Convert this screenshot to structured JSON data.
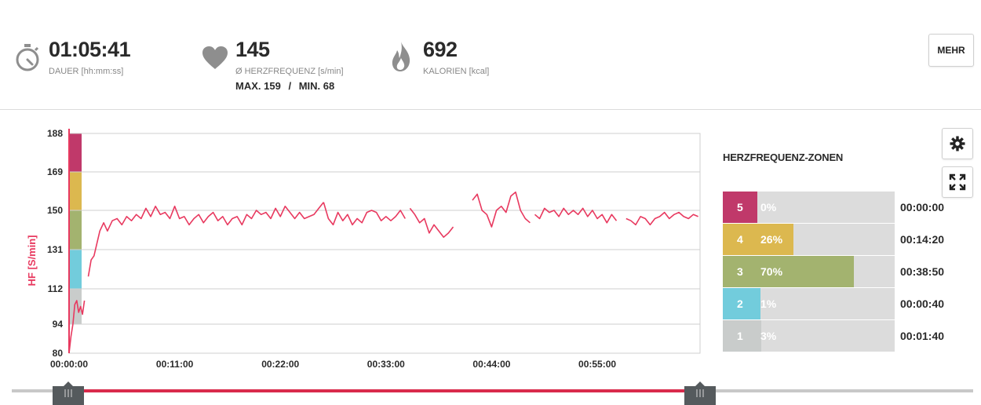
{
  "stats": {
    "duration": {
      "value": "01:05:41",
      "label": "DAUER [hh:mm:ss]"
    },
    "heart_rate": {
      "value": "145",
      "label": "Ø HERZFREQUENZ [s/min]",
      "max_label": "MAX. 159",
      "separator": "/",
      "min_label": "MIN. 68"
    },
    "calories": {
      "value": "692",
      "label": "KALORIEN [kcal]"
    }
  },
  "buttons": {
    "mehr_label": "MEHR"
  },
  "icons": {
    "duration": "stopwatch-icon",
    "heart_rate": "heart-icon",
    "calories": "flame-icon",
    "settings": "gear-icon",
    "expand": "fullscreen-icon"
  },
  "zones": {
    "title": "HERZFREQUENZ-ZONEN",
    "items": [
      {
        "zone": "5",
        "percent": "0%",
        "time": "00:00:00",
        "fraction": 0.0,
        "color": "#c0396a"
      },
      {
        "zone": "4",
        "percent": "26%",
        "time": "00:14:20",
        "fraction": 0.26,
        "color": "#dcb84f"
      },
      {
        "zone": "3",
        "percent": "70%",
        "time": "00:38:50",
        "fraction": 0.7,
        "color": "#a3b36f"
      },
      {
        "zone": "2",
        "percent": "1%",
        "time": "00:00:40",
        "fraction": 0.01,
        "color": "#72ccdc"
      },
      {
        "zone": "1",
        "percent": "3%",
        "time": "00:01:40",
        "fraction": 0.03,
        "color": "#c9cccb"
      }
    ]
  },
  "chart_data": {
    "type": "line",
    "ylabel": "HF [S/min]",
    "y_ticks": [
      "188",
      "169",
      "150",
      "131",
      "112",
      "94",
      "80"
    ],
    "x_ticks": [
      "00:00:00",
      "00:11:00",
      "00:22:00",
      "00:33:00",
      "00:44:00",
      "00:55:00"
    ],
    "ylim": [
      80,
      188
    ],
    "xlim_minutes": [
      0,
      65.7
    ],
    "line_color": "#e8395f",
    "zone_bands": [
      {
        "zone": "5",
        "from": 169,
        "to": 188,
        "color": "#c0396a"
      },
      {
        "zone": "4",
        "from": 150,
        "to": 169,
        "color": "#dcb84f"
      },
      {
        "zone": "3",
        "from": 131,
        "to": 150,
        "color": "#a3b36f"
      },
      {
        "zone": "2",
        "from": 112,
        "to": 131,
        "color": "#72ccdc"
      },
      {
        "zone": "1",
        "from": 94,
        "to": 112,
        "color": "#c9cccb"
      }
    ],
    "series": [
      {
        "x": [
          0,
          0.2,
          0.4,
          0.6,
          0.8,
          1.0,
          1.2,
          1.4,
          1.6
        ],
        "y": [
          80,
          88,
          94,
          104,
          106,
          100,
          103,
          99,
          106
        ]
      },
      {
        "x": [
          2.0,
          2.3,
          2.6,
          2.9,
          3.2,
          3.6,
          4.0,
          4.5,
          5.0,
          5.5,
          6.0,
          6.5,
          7.0,
          7.5,
          8.0,
          8.5,
          9.0,
          9.5,
          10.0,
          10.5,
          11.0,
          11.5,
          12.0,
          12.5,
          13.0,
          13.5,
          14.0,
          14.5,
          15.0,
          15.5,
          16.0,
          16.5,
          17.0,
          17.5,
          18.0,
          18.5,
          19.0,
          19.5,
          20.0,
          20.5,
          21.0,
          21.5,
          22.0,
          22.5,
          23.0,
          23.5,
          24.0,
          24.5,
          25.0,
          25.5,
          26.0,
          26.5
        ],
        "y": [
          118,
          126,
          128,
          134,
          140,
          144,
          140,
          145,
          146,
          143,
          147,
          145,
          148,
          146,
          151,
          147,
          152,
          148,
          149,
          146,
          152,
          146,
          147,
          143,
          146,
          148,
          144,
          147,
          149,
          145,
          147,
          143,
          146,
          147,
          143,
          148,
          146,
          150,
          148,
          149,
          146,
          151,
          147,
          152,
          149,
          146,
          149,
          146,
          147,
          148,
          151,
          154
        ]
      },
      {
        "x": [
          26.5,
          27.0,
          27.5,
          28.0,
          28.5,
          29.0,
          29.5,
          30.0,
          30.5,
          31.0,
          31.5,
          32.0,
          32.5,
          33.0,
          33.5,
          34.0,
          34.5,
          35.0
        ],
        "y": [
          154,
          146,
          143,
          149,
          145,
          148,
          143,
          146,
          144,
          149,
          150,
          149,
          145,
          147,
          145,
          147,
          150,
          146
        ]
      },
      {
        "x": [
          35.5,
          36.0,
          36.5,
          37.0,
          37.5,
          38.0,
          38.5,
          39.0,
          39.5,
          40.0
        ],
        "y": [
          151,
          148,
          144,
          146,
          139,
          143,
          140,
          137,
          139,
          142
        ]
      },
      {
        "x": [
          42.0,
          42.5,
          43.0,
          43.5,
          44.0,
          44.5,
          45.0,
          45.5,
          46.0,
          46.5,
          47.0,
          47.5,
          48.0
        ],
        "y": [
          155,
          158,
          150,
          148,
          142,
          150,
          152,
          149,
          157,
          159,
          150,
          146,
          144
        ]
      },
      {
        "x": [
          48.5,
          49.0,
          49.5,
          50.0,
          50.5,
          51.0,
          51.5,
          52.0,
          52.5,
          53.0,
          53.5,
          54.0,
          54.5,
          55.0,
          55.5,
          56.0,
          56.5,
          57.0
        ],
        "y": [
          148,
          146,
          151,
          149,
          150,
          147,
          151,
          148,
          150,
          148,
          151,
          147,
          150,
          146,
          148,
          144,
          148,
          145
        ]
      },
      {
        "x": [
          58.0,
          58.5,
          59.0,
          59.5,
          60.0,
          60.5,
          61.0,
          61.5,
          62.0,
          62.5,
          63.0,
          63.5,
          64.0,
          64.5,
          65.0,
          65.5
        ],
        "y": [
          146,
          145,
          143,
          147,
          146,
          143,
          146,
          147,
          149,
          146,
          148,
          149,
          147,
          146,
          148,
          147
        ]
      }
    ]
  }
}
